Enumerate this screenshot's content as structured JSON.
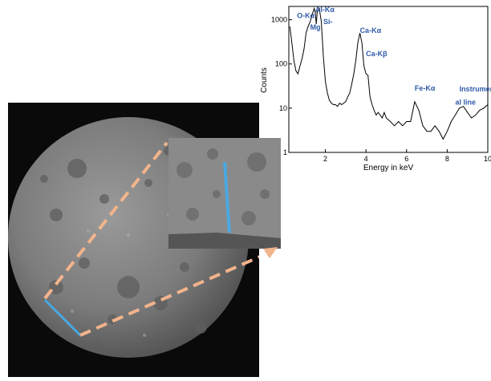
{
  "chart_data": {
    "type": "line",
    "xlabel": "Energy in keV",
    "ylabel": "Counts",
    "yscale": "log",
    "xlim": [
      0.2,
      10
    ],
    "ylim": [
      1,
      2000
    ],
    "x_ticks": [
      "2",
      "4",
      "6",
      "8",
      "10"
    ],
    "y_ticks": [
      "1",
      "10",
      "100",
      "1000"
    ],
    "grid": false,
    "annotations": [
      {
        "text": "O-Kα",
        "x": 0.6,
        "y": 1100
      },
      {
        "text": "Mg",
        "x": 1.25,
        "y": 600
      },
      {
        "text": "Al-Kα",
        "x": 1.5,
        "y": 1500
      },
      {
        "text": "Si-",
        "x": 1.9,
        "y": 800
      },
      {
        "text": "Ca-Kα",
        "x": 3.7,
        "y": 500
      },
      {
        "text": "Ca-Kβ",
        "x": 4.0,
        "y": 150
      },
      {
        "text": "Fe-Kα",
        "x": 6.4,
        "y": 25
      },
      {
        "text": "Instrument",
        "x": 8.6,
        "y": 24
      },
      {
        "text": "al line",
        "x": 8.4,
        "y": 12
      }
    ],
    "series": [
      {
        "x": [
          0.25,
          0.35,
          0.45,
          0.55,
          0.65,
          0.75,
          0.85,
          0.95,
          1.05,
          1.15,
          1.25,
          1.35,
          1.45,
          1.5,
          1.55,
          1.6,
          1.7,
          1.8,
          1.9,
          2.0,
          2.1,
          2.2,
          2.3,
          2.4,
          2.5,
          2.6,
          2.7,
          2.8,
          2.9,
          3.0,
          3.1,
          3.2,
          3.3,
          3.4,
          3.5,
          3.6,
          3.7,
          3.8,
          3.9,
          4.0,
          4.1,
          4.2,
          4.3,
          4.4,
          4.5,
          4.6,
          4.7,
          4.8,
          4.9,
          5.0,
          5.2,
          5.4,
          5.6,
          5.8,
          6.0,
          6.2,
          6.4,
          6.6,
          6.8,
          7.0,
          7.2,
          7.4,
          7.6,
          7.8,
          8.0,
          8.2,
          8.4,
          8.6,
          8.8,
          9.0,
          9.2,
          9.4,
          9.6,
          9.8,
          10.0
        ],
        "y": [
          700,
          300,
          120,
          70,
          60,
          90,
          130,
          220,
          500,
          700,
          900,
          1300,
          1800,
          1500,
          800,
          1500,
          1800,
          900,
          150,
          40,
          22,
          15,
          13,
          12,
          12,
          11,
          13,
          12,
          13,
          14,
          18,
          22,
          35,
          60,
          120,
          300,
          500,
          300,
          90,
          60,
          55,
          18,
          12,
          9,
          7,
          8,
          7,
          6,
          8,
          6,
          5,
          4,
          5,
          4,
          5,
          5,
          14,
          9,
          4,
          3,
          3,
          4,
          3,
          2,
          3,
          5,
          7,
          10,
          11,
          8,
          6,
          7,
          9,
          10,
          12
        ]
      }
    ]
  }
}
